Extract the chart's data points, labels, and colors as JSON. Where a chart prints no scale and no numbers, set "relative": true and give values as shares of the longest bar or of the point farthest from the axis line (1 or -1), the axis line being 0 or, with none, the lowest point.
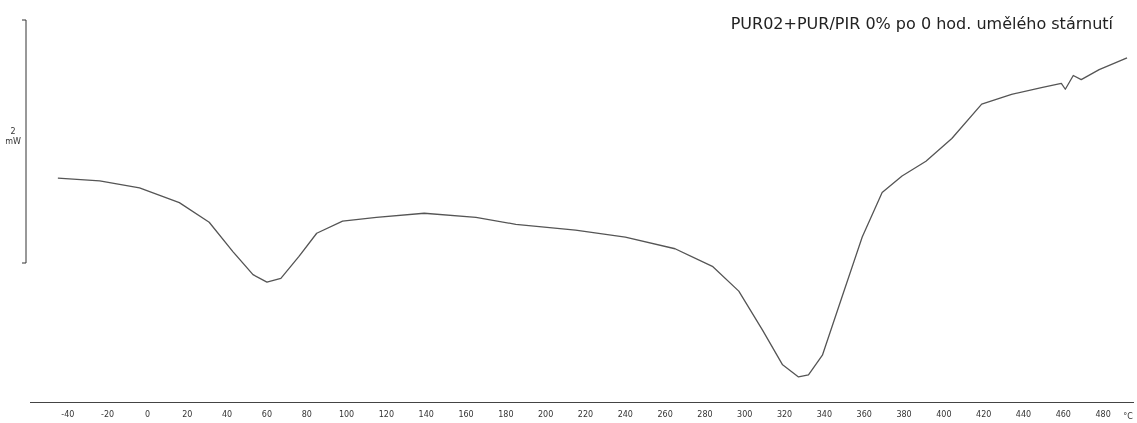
{
  "chart_data": {
    "type": "line",
    "title": "PUR02+PUR/PIR 0% po 0 hod. umělého stárnutí",
    "ylabel": "2 mW",
    "xlabel": "°C",
    "relative": true,
    "grid": false,
    "legend": false,
    "marker": "none",
    "xlim": [
      -59,
      495
    ],
    "xticks": [
      -40,
      -20,
      0,
      20,
      40,
      60,
      80,
      100,
      120,
      140,
      160,
      180,
      200,
      220,
      240,
      260,
      280,
      300,
      320,
      340,
      360,
      380,
      400,
      420,
      440,
      460,
      480
    ],
    "series": [
      {
        "color": "#555555",
        "x": [
          -45,
          -24,
          -4,
          16,
          31,
          43,
          53,
          60,
          67,
          76,
          85,
          98,
          115,
          139,
          165,
          185,
          215,
          240,
          265,
          284,
          297,
          309,
          319,
          327,
          332,
          339,
          349,
          359,
          369,
          379,
          391,
          404,
          419,
          434,
          449,
          459,
          461,
          465,
          469,
          478,
          492
        ],
        "values": [
          0.651,
          0.643,
          0.623,
          0.58,
          0.523,
          0.437,
          0.371,
          0.349,
          0.36,
          0.423,
          0.491,
          0.526,
          0.537,
          0.549,
          0.537,
          0.517,
          0.5,
          0.48,
          0.446,
          0.394,
          0.323,
          0.209,
          0.109,
          0.074,
          0.08,
          0.137,
          0.309,
          0.48,
          0.609,
          0.657,
          0.7,
          0.766,
          0.866,
          0.894,
          0.914,
          0.926,
          0.909,
          0.949,
          0.937,
          0.966,
          1.0
        ]
      }
    ]
  }
}
